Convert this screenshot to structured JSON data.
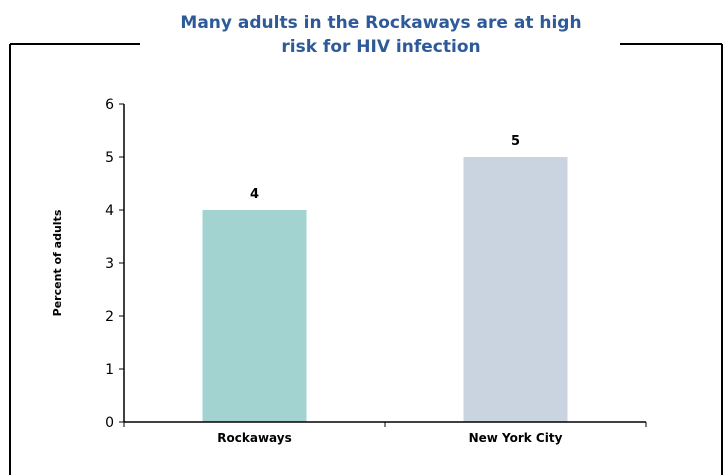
{
  "chart_data": {
    "type": "bar",
    "title_lines": [
      "Many adults in the Rockaways are at high",
      "risk for HIV infection"
    ],
    "xlabel": "",
    "ylabel": "Percent of adults",
    "categories": [
      "Rockaways",
      "New York City"
    ],
    "values": [
      4,
      5
    ],
    "value_labels": [
      "4",
      "5"
    ],
    "ylim": [
      0,
      6
    ],
    "yticks": [
      "0",
      "1",
      "2",
      "3",
      "4",
      "5",
      "6"
    ],
    "bar_colors": [
      "#A3D3D1",
      "#C9D4E0"
    ],
    "title_color": "#2E5A9A",
    "grid": false
  }
}
